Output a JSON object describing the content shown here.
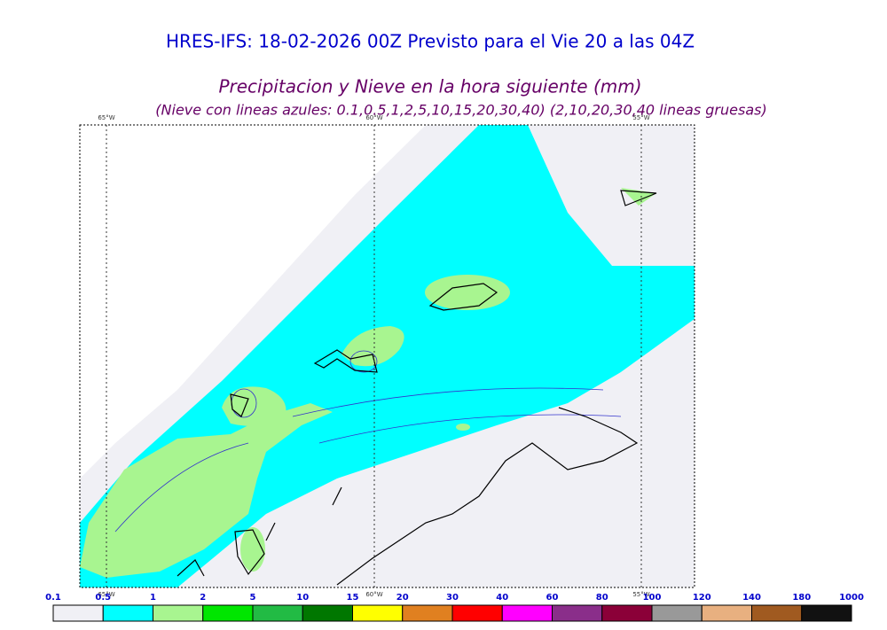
{
  "header": {
    "title": "HRES-IFS: 18-02-2026 00Z Previsto para el Vie 20 a las 04Z",
    "subtitle": "Precipitacion y Nieve en la hora siguiente (mm)",
    "note": "(Nieve con lineas azules: 0.1,0.5,1,2,5,10,15,20,30,40)  (2,10,20,30,40 lineas gruesas)"
  },
  "map": {
    "lon_labels_top": [
      "65°W",
      "60°W",
      "55°W"
    ],
    "lon_labels_bottom": [
      "65°W",
      "60°W",
      "55°W"
    ]
  },
  "colorbar": {
    "labels": [
      "0.1",
      "0.5",
      "1",
      "2",
      "5",
      "10",
      "15",
      "20",
      "30",
      "40",
      "60",
      "80",
      "100",
      "120",
      "140",
      "180",
      "1000"
    ],
    "colors": [
      "#f0f0f5",
      "#00ffff",
      "#a8f590",
      "#00e600",
      "#22bb44",
      "#007700",
      "#ffff00",
      "#e08020",
      "#ff0000",
      "#ff00ff",
      "#8a2e8a",
      "#8b0038",
      "#999999",
      "#e8b080",
      "#a05a20",
      "#111111"
    ]
  }
}
